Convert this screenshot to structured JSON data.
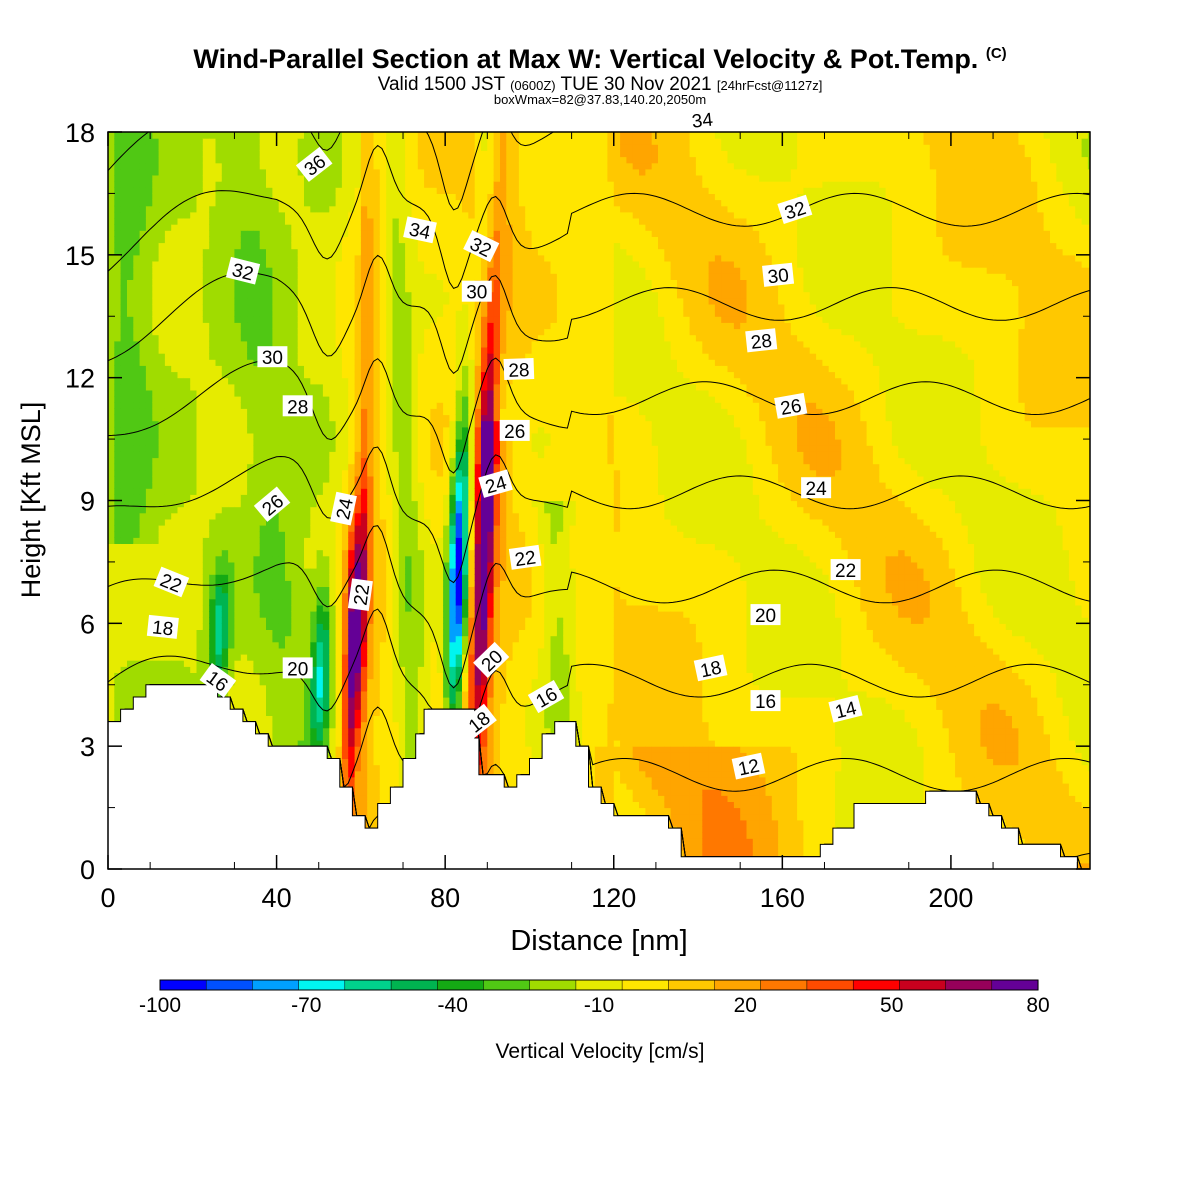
{
  "chart_data": {
    "type": "heatmap",
    "title": "Wind-Parallel Section at Max W: Vertical Velocity & Pot.Temp.",
    "title_mark": "(C)",
    "subtitle_parts": [
      "Valid 1500 JST",
      "(0600Z)",
      "TUE 30 Nov 2021",
      "[24hrFcst@1127z]"
    ],
    "subtitle2": "boxWmax=82@37.83,140.20,2050m",
    "xlabel": "Distance [nm]",
    "ylabel": "Height [Kft MSL]",
    "xlim": [
      0,
      233
    ],
    "ylim": [
      0,
      18
    ],
    "x_ticks": [
      0,
      40,
      80,
      120,
      160,
      200
    ],
    "y_ticks": [
      0,
      3,
      6,
      9,
      12,
      15,
      18
    ],
    "colorbar": {
      "label": "Vertical Velocity [cm/s]",
      "range": [
        -100,
        80
      ],
      "tick_values": [
        -100,
        -70,
        -40,
        -10,
        20,
        50,
        80
      ],
      "colors": [
        "#0000ff",
        "#0050ff",
        "#00a0ff",
        "#00f5f0",
        "#00d28c",
        "#00b450",
        "#14aa14",
        "#50c814",
        "#a0dc00",
        "#e6eb00",
        "#ffe600",
        "#ffc800",
        "#ffa500",
        "#ff7800",
        "#ff4b00",
        "#ff0000",
        "#c8001e",
        "#96005a",
        "#640096"
      ]
    },
    "terrain": [
      [
        0,
        3.6
      ],
      [
        3,
        3.6
      ],
      [
        3,
        3.9
      ],
      [
        6,
        3.9
      ],
      [
        6,
        4.2
      ],
      [
        9,
        4.2
      ],
      [
        9,
        4.5
      ],
      [
        26,
        4.5
      ],
      [
        26,
        4.2
      ],
      [
        29,
        4.2
      ],
      [
        29,
        3.9
      ],
      [
        32,
        3.9
      ],
      [
        32,
        3.6
      ],
      [
        35,
        3.6
      ],
      [
        35,
        3.3
      ],
      [
        38,
        3.3
      ],
      [
        38,
        3.0
      ],
      [
        52,
        3.0
      ],
      [
        52,
        2.7
      ],
      [
        55,
        2.7
      ],
      [
        55,
        2.0
      ],
      [
        58,
        2.0
      ],
      [
        58,
        1.3
      ],
      [
        61,
        1.3
      ],
      [
        61,
        1.0
      ],
      [
        64,
        1.0
      ],
      [
        64,
        1.6
      ],
      [
        67,
        1.6
      ],
      [
        67,
        2.0
      ],
      [
        70,
        2.0
      ],
      [
        70,
        2.7
      ],
      [
        73,
        2.7
      ],
      [
        73,
        3.3
      ],
      [
        75,
        3.3
      ],
      [
        75,
        3.9
      ],
      [
        87,
        3.9
      ],
      [
        87,
        3.2
      ],
      [
        88,
        3.2
      ],
      [
        88,
        2.3
      ],
      [
        91,
        2.3
      ],
      [
        91,
        2.3
      ],
      [
        94,
        2.3
      ],
      [
        94,
        2.0
      ],
      [
        97,
        2.0
      ],
      [
        97,
        2.3
      ],
      [
        100,
        2.3
      ],
      [
        100,
        2.7
      ],
      [
        103,
        2.7
      ],
      [
        103,
        3.3
      ],
      [
        106,
        3.3
      ],
      [
        106,
        3.6
      ],
      [
        111,
        3.6
      ],
      [
        111,
        3.0
      ],
      [
        114,
        3.0
      ],
      [
        114,
        2.0
      ],
      [
        117,
        2.0
      ],
      [
        117,
        1.6
      ],
      [
        120,
        1.6
      ],
      [
        120,
        1.3
      ],
      [
        133,
        1.3
      ],
      [
        133,
        1.0
      ],
      [
        136,
        1.0
      ],
      [
        136,
        0.3
      ],
      [
        169,
        0.3
      ],
      [
        169,
        0.6
      ],
      [
        172,
        0.6
      ],
      [
        172,
        1.0
      ],
      [
        177,
        1.0
      ],
      [
        177,
        1.6
      ],
      [
        194,
        1.6
      ],
      [
        194,
        1.9
      ],
      [
        206,
        1.9
      ],
      [
        206,
        1.6
      ],
      [
        209,
        1.6
      ],
      [
        209,
        1.3
      ],
      [
        212,
        1.3
      ],
      [
        212,
        1.0
      ],
      [
        216,
        1.0
      ],
      [
        216,
        0.6
      ],
      [
        226,
        0.6
      ],
      [
        226,
        0.3
      ],
      [
        230,
        0.3
      ],
      [
        230,
        0.0
      ]
    ],
    "updraft_cores": [
      {
        "x": 57.5,
        "y_bottom": 2.4,
        "y_top": 8.6,
        "w": 82
      },
      {
        "x": 88,
        "y_bottom": 4.3,
        "y_top": 14.0,
        "w": 78
      }
    ],
    "downdraft_cores": [
      {
        "x": 82,
        "y_bottom": 4.0,
        "y_top": 10.5,
        "w": -100
      },
      {
        "x": 50,
        "y_bottom": 3.1,
        "y_top": 6.5,
        "w": -50
      },
      {
        "x": 26,
        "y_bottom": 4.6,
        "y_top": 7.0,
        "w": -45
      }
    ],
    "theta_levels": [
      12,
      14,
      16,
      18,
      20,
      22,
      24,
      26,
      28,
      30,
      32,
      34,
      36
    ],
    "contour_labels": [
      {
        "x": 49,
        "y": 17.2,
        "v": "36",
        "rot": -38
      },
      {
        "x": 74,
        "y": 15.6,
        "v": "34",
        "rot": 12
      },
      {
        "x": 88.5,
        "y": 15.2,
        "v": "32",
        "rot": 26
      },
      {
        "x": 32,
        "y": 14.6,
        "v": "32",
        "rot": 14
      },
      {
        "x": 87.5,
        "y": 14.1,
        "v": "30",
        "rot": 0
      },
      {
        "x": 39,
        "y": 12.5,
        "v": "30",
        "rot": 0
      },
      {
        "x": 45,
        "y": 11.3,
        "v": "28",
        "rot": 0
      },
      {
        "x": 97.5,
        "y": 12.2,
        "v": "28",
        "rot": -2
      },
      {
        "x": 96.5,
        "y": 10.7,
        "v": "26",
        "rot": 0
      },
      {
        "x": 39,
        "y": 8.9,
        "v": "26",
        "rot": -40
      },
      {
        "x": 56,
        "y": 8.8,
        "v": "24",
        "rot": -78
      },
      {
        "x": 92,
        "y": 9.4,
        "v": "24",
        "rot": -16
      },
      {
        "x": 99,
        "y": 7.6,
        "v": "22",
        "rot": -8
      },
      {
        "x": 60,
        "y": 6.7,
        "v": "22",
        "rot": -82
      },
      {
        "x": 15,
        "y": 7.0,
        "v": "22",
        "rot": 22
      },
      {
        "x": 13,
        "y": 5.9,
        "v": "18",
        "rot": 6
      },
      {
        "x": 45,
        "y": 4.9,
        "v": "20",
        "rot": 0
      },
      {
        "x": 26,
        "y": 4.6,
        "v": "16",
        "rot": 36
      },
      {
        "x": 91,
        "y": 5.1,
        "v": "20",
        "rot": -44
      },
      {
        "x": 88,
        "y": 3.6,
        "v": "18",
        "rot": -38
      },
      {
        "x": 104,
        "y": 4.2,
        "v": "16",
        "rot": -30
      },
      {
        "x": 141,
        "y": 18.3,
        "v": "34",
        "rot": -6
      },
      {
        "x": 163,
        "y": 16.1,
        "v": "32",
        "rot": -18
      },
      {
        "x": 159,
        "y": 14.5,
        "v": "30",
        "rot": -6
      },
      {
        "x": 155,
        "y": 12.9,
        "v": "28",
        "rot": -6
      },
      {
        "x": 162,
        "y": 11.3,
        "v": "26",
        "rot": -10
      },
      {
        "x": 168,
        "y": 9.3,
        "v": "24",
        "rot": 0
      },
      {
        "x": 175,
        "y": 7.3,
        "v": "22",
        "rot": 0
      },
      {
        "x": 156,
        "y": 6.2,
        "v": "20",
        "rot": 0
      },
      {
        "x": 143,
        "y": 4.9,
        "v": "18",
        "rot": -12
      },
      {
        "x": 156,
        "y": 4.1,
        "v": "16",
        "rot": 0
      },
      {
        "x": 175,
        "y": 3.9,
        "v": "14",
        "rot": -14
      },
      {
        "x": 152,
        "y": 2.5,
        "v": "12",
        "rot": -12
      }
    ]
  }
}
